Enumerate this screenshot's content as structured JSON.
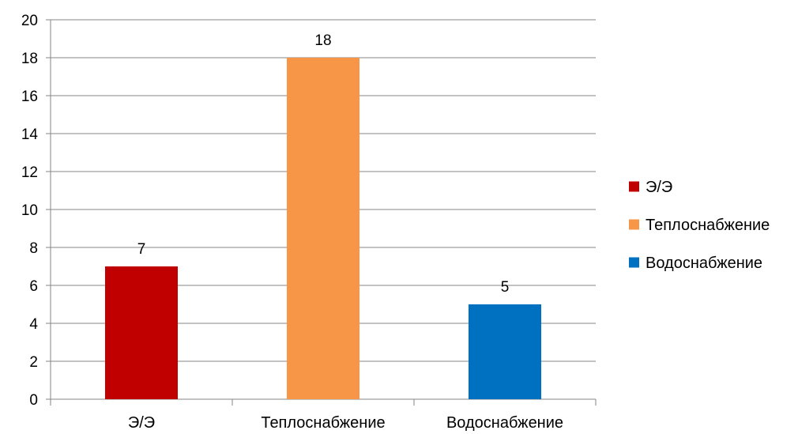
{
  "chart_data": {
    "type": "bar",
    "categories": [
      "Э/Э",
      "Теплоснабжение",
      "Водоснабжение"
    ],
    "values": [
      7,
      18,
      5
    ],
    "colors": [
      "#c00000",
      "#f79646",
      "#0070c0"
    ],
    "data_labels": [
      "7",
      "18",
      "5"
    ],
    "ylim": [
      0,
      20
    ],
    "yticks": [
      0,
      2,
      4,
      6,
      8,
      10,
      12,
      14,
      16,
      18,
      20
    ],
    "grid": true,
    "legend": {
      "position": "right",
      "entries": [
        "Э/Э",
        "Теплоснабжение",
        "Водоснабжение"
      ]
    }
  }
}
